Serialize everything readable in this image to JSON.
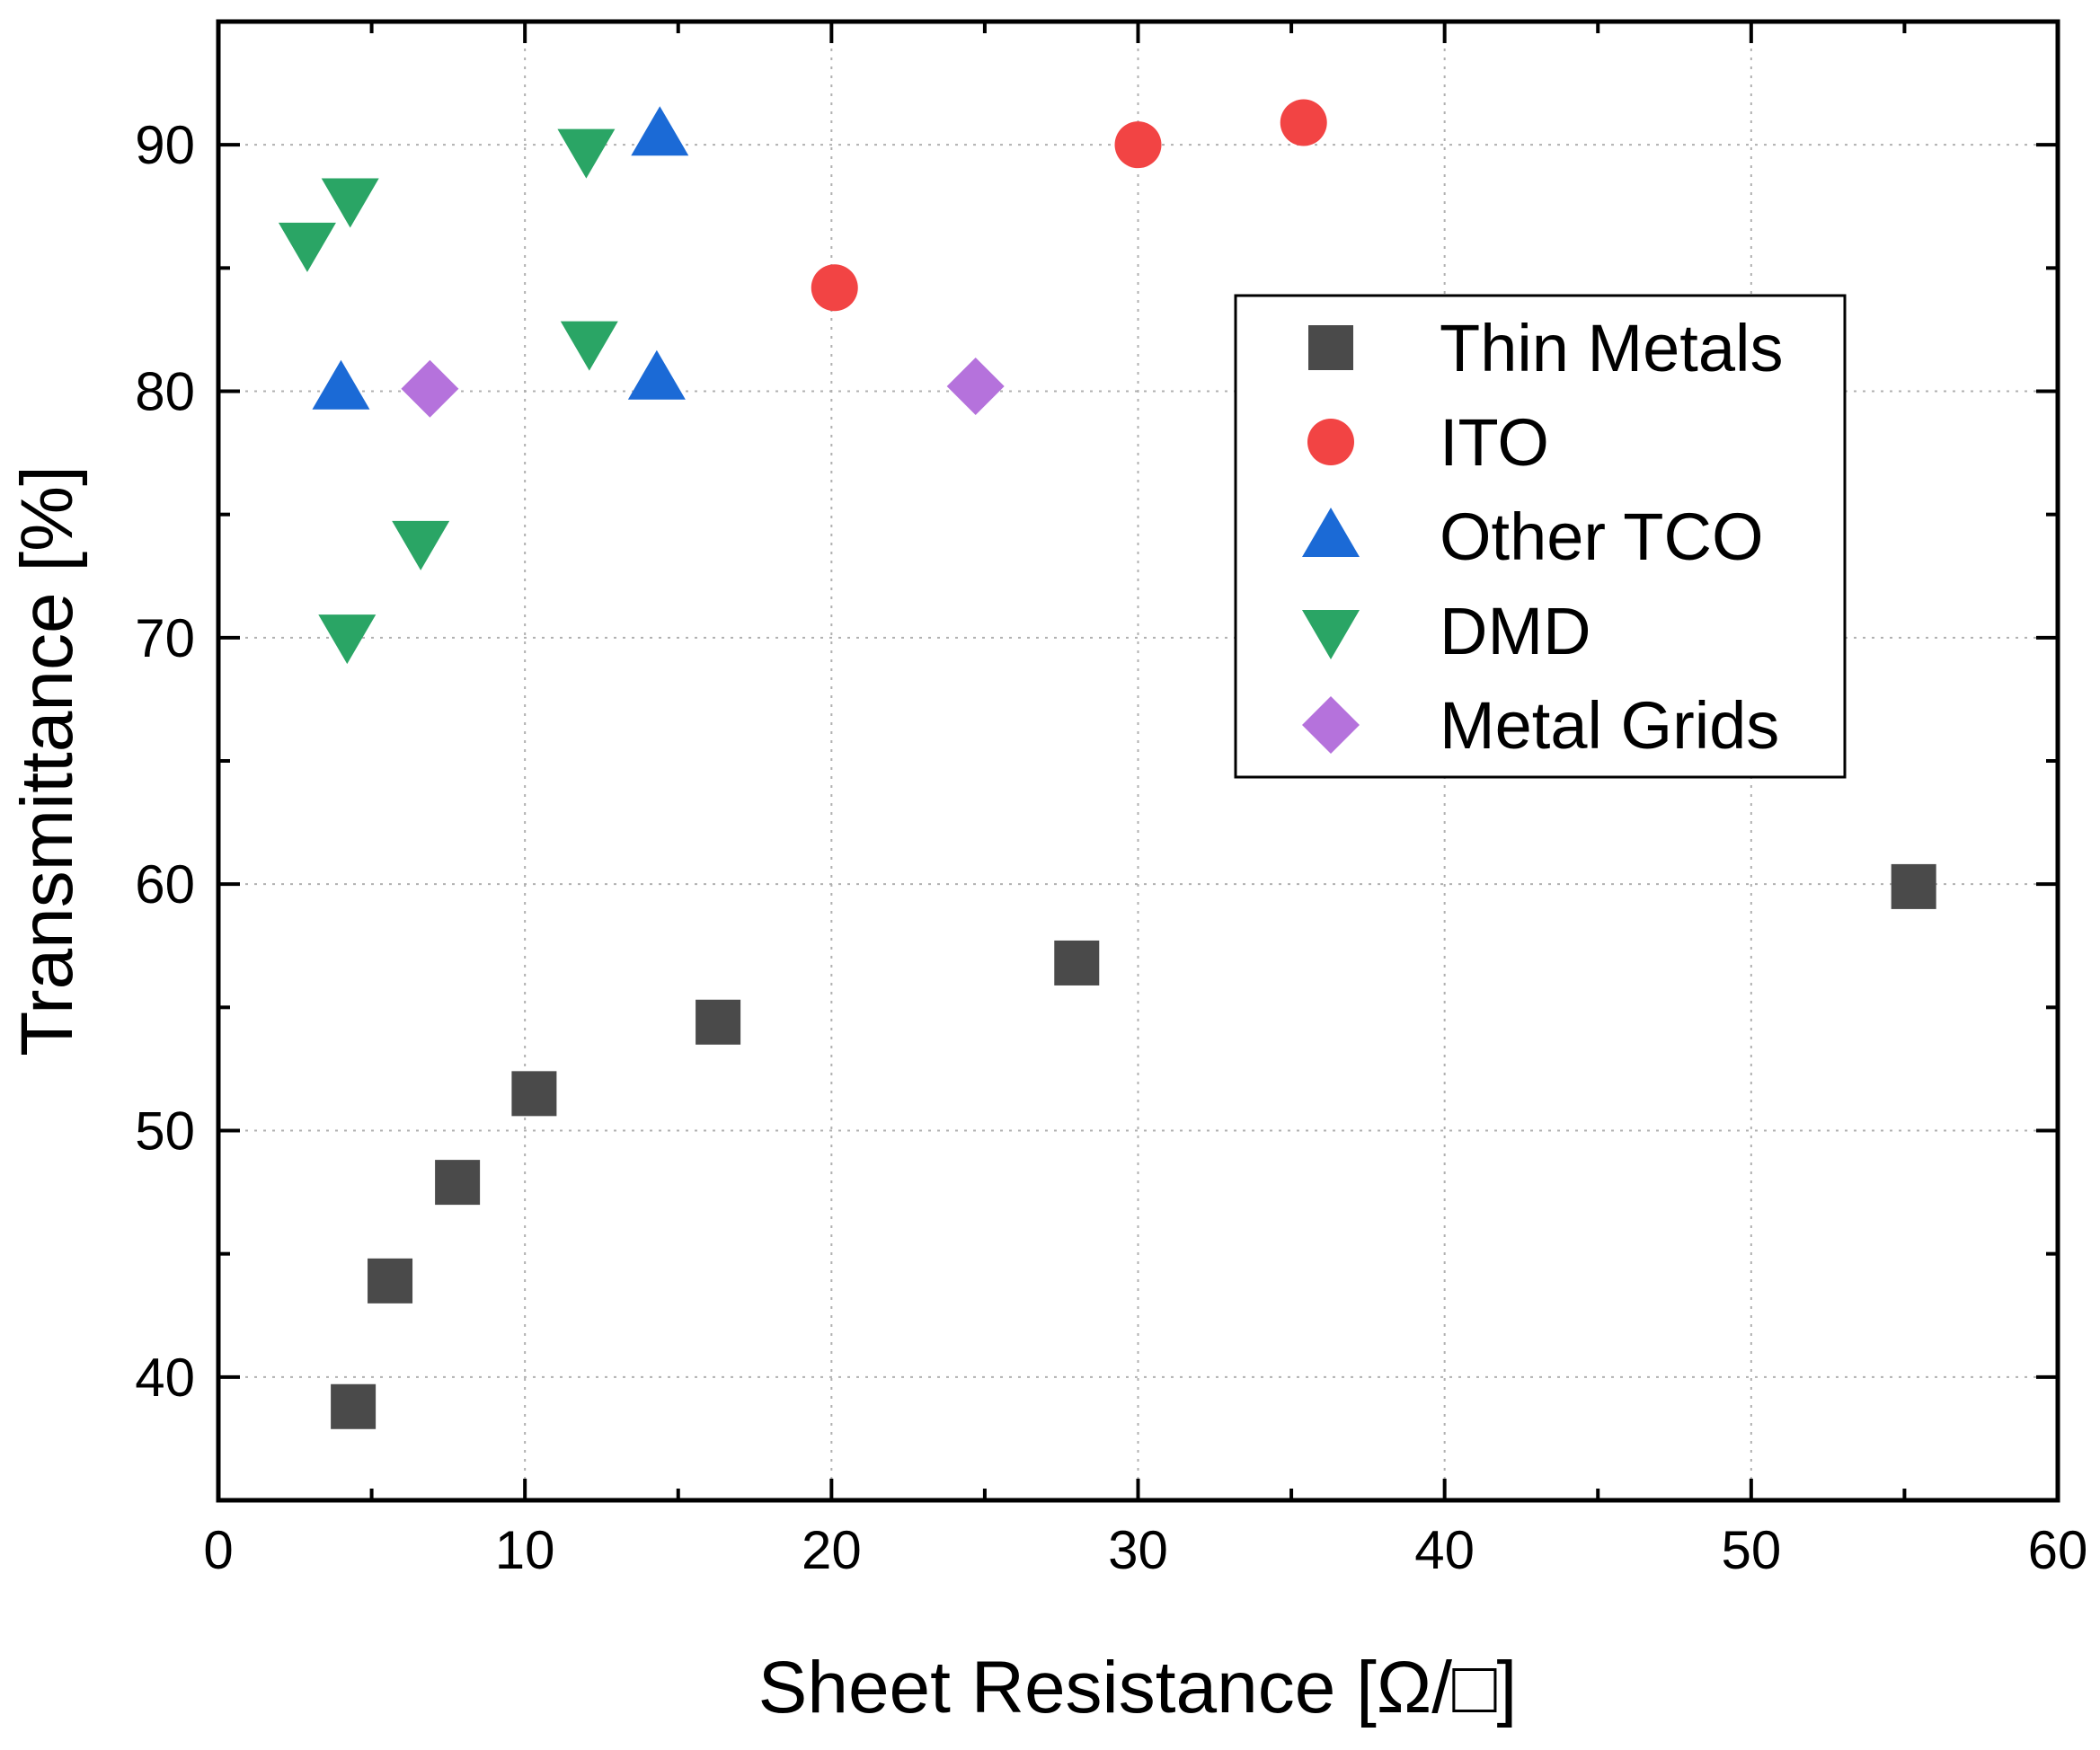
{
  "chart_data": {
    "type": "scatter",
    "title": "",
    "xlabel": "Sheet Resistance [Ω/□]",
    "ylabel": "Transmittance [%]",
    "xlim": [
      0,
      60
    ],
    "ylim": [
      35,
      95
    ],
    "xticks": [
      0,
      10,
      20,
      30,
      40,
      50,
      60
    ],
    "yticks": [
      40,
      50,
      60,
      70,
      80,
      90
    ],
    "grid": true,
    "legend_position": "right",
    "series": [
      {
        "name": "Thin Metals",
        "marker": "square",
        "color": "#4a4a4a",
        "points": [
          [
            4.4,
            38.8
          ],
          [
            5.6,
            43.9
          ],
          [
            7.8,
            47.9
          ],
          [
            10.3,
            51.5
          ],
          [
            16.3,
            54.4
          ],
          [
            28.0,
            56.8
          ],
          [
            55.3,
            59.9
          ]
        ]
      },
      {
        "name": "ITO",
        "marker": "circle",
        "color": "#f24444",
        "points": [
          [
            20.1,
            84.2
          ],
          [
            30.0,
            90.0
          ],
          [
            35.4,
            90.9
          ]
        ]
      },
      {
        "name": "Other TCO",
        "marker": "triangle-up",
        "color": "#1b6ad6",
        "points": [
          [
            4.0,
            80.1
          ],
          [
            14.3,
            80.5
          ],
          [
            14.4,
            90.4
          ]
        ]
      },
      {
        "name": "DMD",
        "marker": "triangle-down",
        "color": "#2aa565",
        "points": [
          [
            2.9,
            86.0
          ],
          [
            4.3,
            87.8
          ],
          [
            12.0,
            89.8
          ],
          [
            12.1,
            82.0
          ],
          [
            6.6,
            73.9
          ],
          [
            4.2,
            70.1
          ]
        ]
      },
      {
        "name": "Metal Grids",
        "marker": "diamond",
        "color": "#b572dc",
        "points": [
          [
            6.9,
            80.1
          ],
          [
            24.7,
            80.2
          ]
        ]
      }
    ]
  }
}
